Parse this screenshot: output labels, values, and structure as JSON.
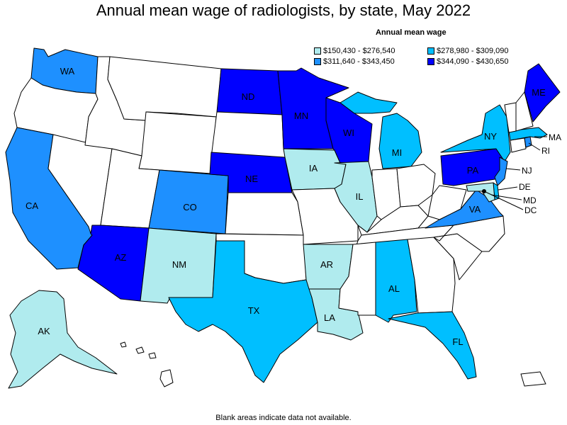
{
  "title": "Annual mean wage of radiologists, by state, May 2022",
  "legend": {
    "title": "Annual mean wage",
    "items": [
      {
        "range": "$150,430 - $276,540",
        "color": "#b0ebee"
      },
      {
        "range": "$278,980 - $309,090",
        "color": "#00bfff"
      },
      {
        "range": "$311,640 - $343,450",
        "color": "#1e90ff"
      },
      {
        "range": "$344,090 - $430,650",
        "color": "#0000ff"
      }
    ]
  },
  "colors": {
    "blank": "#ffffff",
    "outline": "#000000"
  },
  "states": {
    "WA": {
      "label": "WA",
      "bin": 2
    },
    "CA": {
      "label": "CA",
      "bin": 2
    },
    "CO": {
      "label": "CO",
      "bin": 2
    },
    "VA": {
      "label": "VA",
      "bin": 2
    },
    "NJ": {
      "label": "NJ",
      "bin": 2
    },
    "RI": {
      "label": "RI",
      "bin": 2
    },
    "AZ": {
      "label": "AZ",
      "bin": 3
    },
    "ND": {
      "label": "ND",
      "bin": 3
    },
    "MN": {
      "label": "MN",
      "bin": 3
    },
    "WI": {
      "label": "WI",
      "bin": 3
    },
    "NE": {
      "label": "NE",
      "bin": 3
    },
    "PA": {
      "label": "PA",
      "bin": 3
    },
    "ME": {
      "label": "ME",
      "bin": 3
    },
    "TX": {
      "label": "TX",
      "bin": 1
    },
    "MI": {
      "label": "MI",
      "bin": 1
    },
    "NY": {
      "label": "NY",
      "bin": 1
    },
    "AL": {
      "label": "AL",
      "bin": 1
    },
    "FL": {
      "label": "FL",
      "bin": 1
    },
    "MA": {
      "label": "MA",
      "bin": 1
    },
    "DE": {
      "label": "DE",
      "bin": 1
    },
    "NM": {
      "label": "NM",
      "bin": 0
    },
    "IA": {
      "label": "IA",
      "bin": 0
    },
    "IL": {
      "label": "IL",
      "bin": 0
    },
    "AR": {
      "label": "AR",
      "bin": 0
    },
    "LA": {
      "label": "LA",
      "bin": 0
    },
    "AK": {
      "label": "AK",
      "bin": 0
    },
    "MD": {
      "label": "MD",
      "bin": 0
    },
    "DC": {
      "label": "DC",
      "bin": 3
    }
  },
  "footnote": "Blank areas indicate data not available."
}
